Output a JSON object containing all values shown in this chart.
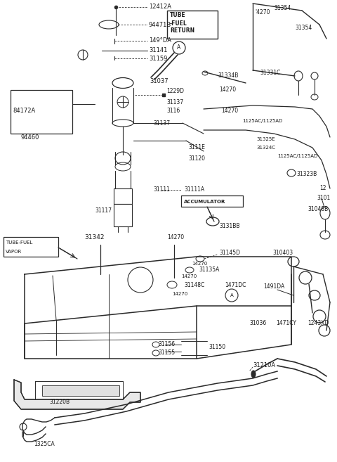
{
  "bg_color": "#ffffff",
  "lc": "#2a2a2a",
  "tc": "#1a1a1a",
  "fs": 6.0,
  "figw": 4.8,
  "figh": 6.57,
  "dpi": 100,
  "xlim": [
    0,
    480
  ],
  "ylim": [
    0,
    657
  ]
}
